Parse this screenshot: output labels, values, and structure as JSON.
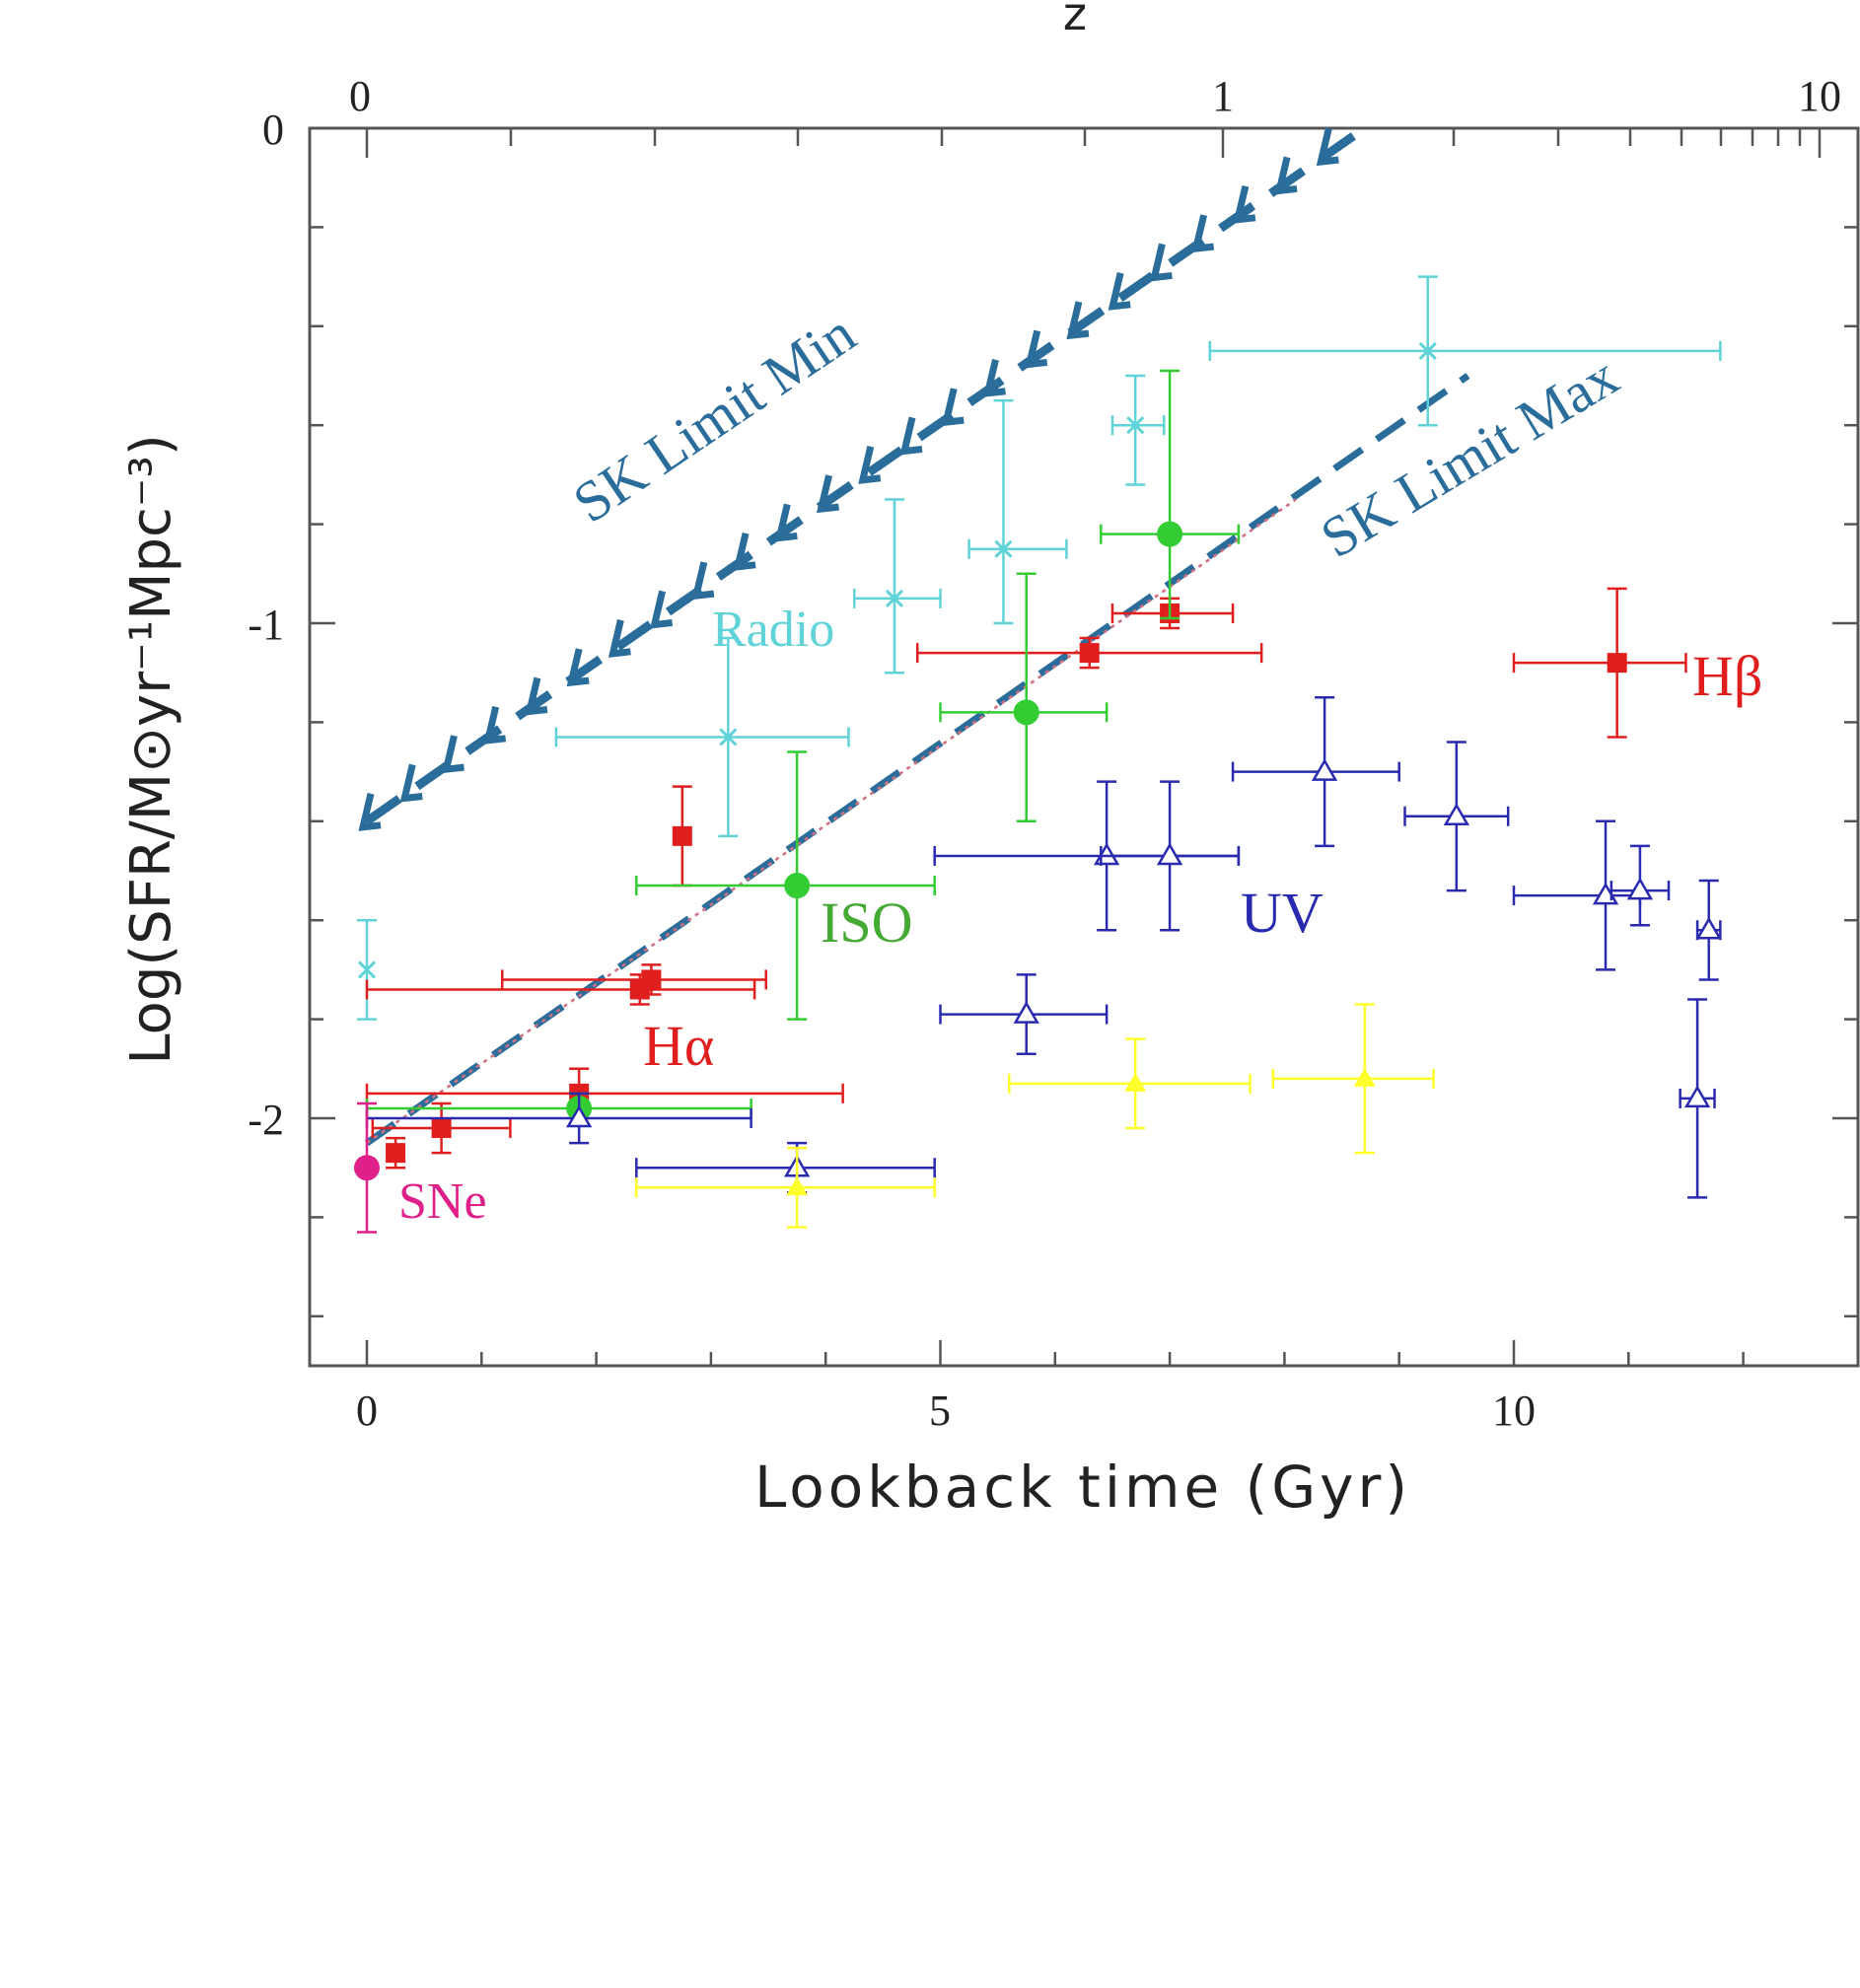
{
  "chart_data": {
    "type": "scatter",
    "xlabel": "Lookback time (Gyr)",
    "ylabel": "Log(SFR/M⊙yr⁻¹Mpc⁻³)",
    "top_axis_label": "z",
    "xlim": [
      -0.5,
      13
    ],
    "ylim": [
      -2.5,
      0
    ],
    "x_ticks": [
      "0",
      "5",
      "10"
    ],
    "y_ticks": [
      "0",
      "-1",
      "-2"
    ],
    "top_ticks": [
      "0",
      "1",
      "10"
    ],
    "colors": {
      "radio": "#5fd3d8",
      "halpha": "#e01e1e",
      "hbeta": "#e01e1e",
      "iso": "#33cc33",
      "uv": "#2a2ab0",
      "optical_yellow": "#ffff2a",
      "sne": "#e0208a",
      "sk": "#2a6c9a",
      "model": "#d07080"
    },
    "annotations": {
      "sk_min": "SK Limit Min",
      "sk_max": "SK Limit Max",
      "radio": "Radio",
      "iso": "ISO",
      "halpha": "Hα",
      "hbeta": "Hβ",
      "uv": "UV",
      "sne": "SNe"
    },
    "sk_limit_min": {
      "x": [
        0,
        8.7
      ],
      "y": [
        -1.4,
        0.0
      ]
    },
    "sk_limit_max": {
      "x": [
        0,
        9.6
      ],
      "y": [
        -2.05,
        -0.5
      ]
    },
    "model_line": {
      "x": [
        0,
        8.1
      ],
      "y": [
        -2.05,
        -0.75
      ]
    },
    "series": [
      {
        "name": "Radio",
        "color_key": "radio",
        "marker": "cross",
        "points": [
          {
            "x": 0.0,
            "y": -1.7,
            "xerr": [
              0,
              0
            ],
            "yerr": [
              0.1,
              0.1
            ]
          },
          {
            "x": 3.15,
            "y": -1.23,
            "xerr": [
              1.5,
              1.05
            ],
            "yerr": [
              0.2,
              0.2
            ]
          },
          {
            "x": 4.6,
            "y": -0.95,
            "xerr": [
              0.35,
              0.4
            ],
            "yerr": [
              0.15,
              0.2
            ]
          },
          {
            "x": 5.55,
            "y": -0.85,
            "xerr": [
              0.3,
              0.55
            ],
            "yerr": [
              0.15,
              0.3
            ]
          },
          {
            "x": 6.7,
            "y": -0.6,
            "xerr": [
              0.2,
              0.25
            ],
            "yerr": [
              0.12,
              0.1
            ]
          },
          {
            "x": 9.25,
            "y": -0.45,
            "xerr": [
              1.9,
              2.55
            ],
            "yerr": [
              0.15,
              0.15
            ]
          }
        ]
      },
      {
        "name": "Hα",
        "color_key": "halpha",
        "marker": "square",
        "points": [
          {
            "x": 0.25,
            "y": -2.07,
            "xerr": [
              0,
              0
            ],
            "yerr": [
              0.03,
              0.03
            ]
          },
          {
            "x": 0.65,
            "y": -2.02,
            "xerr": [
              0.6,
              0.6
            ],
            "yerr": [
              0.05,
              0.05
            ]
          },
          {
            "x": 1.85,
            "y": -1.95,
            "xerr": [
              1.85,
              2.3
            ],
            "yerr": [
              0.05,
              0.05
            ]
          },
          {
            "x": 2.38,
            "y": -1.74,
            "xerr": [
              2.38,
              1.0
            ],
            "yerr": [
              0.03,
              0.03
            ]
          },
          {
            "x": 2.48,
            "y": -1.72,
            "xerr": [
              1.3,
              1.0
            ],
            "yerr": [
              0.03,
              0.03
            ]
          },
          {
            "x": 2.75,
            "y": -1.43,
            "xerr": [
              0,
              0
            ],
            "yerr": [
              0.1,
              0.1
            ]
          },
          {
            "x": 6.3,
            "y": -1.06,
            "xerr": [
              1.5,
              1.5
            ],
            "yerr": [
              0.03,
              0.03
            ]
          },
          {
            "x": 7.0,
            "y": -0.98,
            "xerr": [
              0.5,
              0.55
            ],
            "yerr": [
              0.03,
              0.03
            ]
          }
        ]
      },
      {
        "name": "Hβ",
        "color_key": "hbeta",
        "marker": "square",
        "points": [
          {
            "x": 10.9,
            "y": -1.08,
            "xerr": [
              0.9,
              0.6
            ],
            "yerr": [
              0.15,
              0.15
            ]
          }
        ]
      },
      {
        "name": "ISO",
        "color_key": "iso",
        "marker": "circle",
        "points": [
          {
            "x": 1.85,
            "y": -1.98,
            "xerr": [
              1.85,
              1.5
            ],
            "yerr": [
              0.03,
              0.03
            ]
          },
          {
            "x": 3.75,
            "y": -1.53,
            "xerr": [
              1.4,
              1.2
            ],
            "yerr": [
              0.27,
              0.27
            ]
          },
          {
            "x": 5.75,
            "y": -1.18,
            "xerr": [
              0.75,
              0.7
            ],
            "yerr": [
              0.22,
              0.28
            ]
          },
          {
            "x": 7.0,
            "y": -0.82,
            "xerr": [
              0.6,
              0.6
            ],
            "yerr": [
              0.17,
              0.33
            ]
          }
        ]
      },
      {
        "name": "UV",
        "color_key": "uv",
        "marker": "triangle-open",
        "points": [
          {
            "x": 1.85,
            "y": -2.0,
            "xerr": [
              1.85,
              1.5
            ],
            "yerr": [
              0.05,
              0.05
            ]
          },
          {
            "x": 3.75,
            "y": -2.1,
            "xerr": [
              1.4,
              1.2
            ],
            "yerr": [
              0.05,
              0.05
            ]
          },
          {
            "x": 5.75,
            "y": -1.79,
            "xerr": [
              0.75,
              0.7
            ],
            "yerr": [
              0.08,
              0.08
            ]
          },
          {
            "x": 6.45,
            "y": -1.47,
            "xerr": [
              1.5,
              1.15
            ],
            "yerr": [
              0.15,
              0.15
            ]
          },
          {
            "x": 7.0,
            "y": -1.47,
            "xerr": [
              0.6,
              0.6
            ],
            "yerr": [
              0.15,
              0.15
            ]
          },
          {
            "x": 8.35,
            "y": -1.3,
            "xerr": [
              0.8,
              0.65
            ],
            "yerr": [
              0.15,
              0.15
            ]
          },
          {
            "x": 9.5,
            "y": -1.39,
            "xerr": [
              0.45,
              0.45
            ],
            "yerr": [
              0.15,
              0.15
            ]
          },
          {
            "x": 10.8,
            "y": -1.55,
            "xerr": [
              0.8,
              0.3
            ],
            "yerr": [
              0.15,
              0.15
            ]
          },
          {
            "x": 11.1,
            "y": -1.54,
            "xerr": [
              0.25,
              0.25
            ],
            "yerr": [
              0.07,
              0.09
            ]
          },
          {
            "x": 11.7,
            "y": -1.62,
            "xerr": [
              0.1,
              0.1
            ],
            "yerr": [
              0.1,
              0.1
            ]
          },
          {
            "x": 11.6,
            "y": -1.96,
            "xerr": [
              0.15,
              0.15
            ],
            "yerr": [
              0.2,
              0.2
            ]
          }
        ]
      },
      {
        "name": "",
        "color_key": "optical_yellow",
        "marker": "triangle-filled",
        "points": [
          {
            "x": 3.75,
            "y": -2.14,
            "xerr": [
              1.4,
              1.2
            ],
            "yerr": [
              0.08,
              0.08
            ]
          },
          {
            "x": 6.7,
            "y": -1.93,
            "xerr": [
              1.1,
              1.0
            ],
            "yerr": [
              0.09,
              0.09
            ]
          },
          {
            "x": 8.7,
            "y": -1.92,
            "xerr": [
              0.8,
              0.6
            ],
            "yerr": [
              0.15,
              0.15
            ]
          }
        ]
      },
      {
        "name": "SNe",
        "color_key": "sne",
        "marker": "circle",
        "points": [
          {
            "x": 0.0,
            "y": -2.1,
            "xerr": [
              0,
              0
            ],
            "yerr": [
              0.13,
              0.13
            ]
          }
        ]
      }
    ]
  }
}
